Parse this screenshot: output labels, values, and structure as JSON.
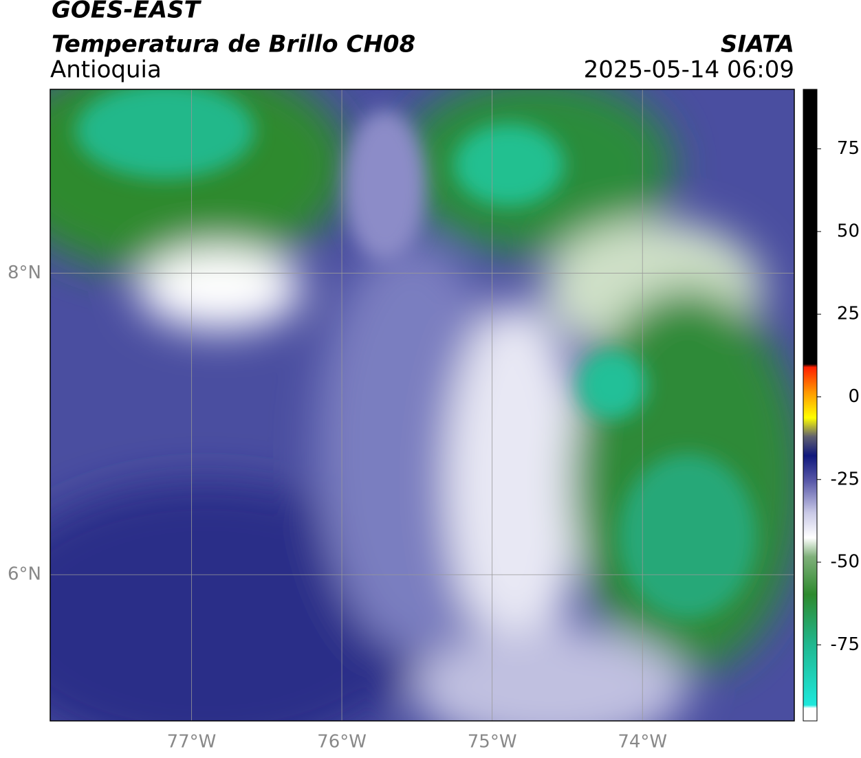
{
  "header": {
    "title": "GOES-EAST",
    "subtitle": "Temperatura de Brillo CH08",
    "region": "Antioquia",
    "source": "SIATA",
    "datetime": "2025-05-14 06:09"
  },
  "map": {
    "lonlim": [
      -77.94,
      -72.99
    ],
    "latlim": [
      5.03,
      9.22
    ],
    "lon_ticks": [
      {
        "value": -77,
        "label": "77°W"
      },
      {
        "value": -76,
        "label": "76°W"
      },
      {
        "value": -75,
        "label": "75°W"
      },
      {
        "value": -74,
        "label": "74°W"
      }
    ],
    "lat_ticks": [
      {
        "value": 8,
        "label": "8°N"
      },
      {
        "value": 6,
        "label": "6°N"
      }
    ]
  },
  "colorbar": {
    "lim": [
      -98,
      93
    ],
    "ticks": [
      75,
      50,
      25,
      0,
      -25,
      -50,
      -75
    ]
  }
}
